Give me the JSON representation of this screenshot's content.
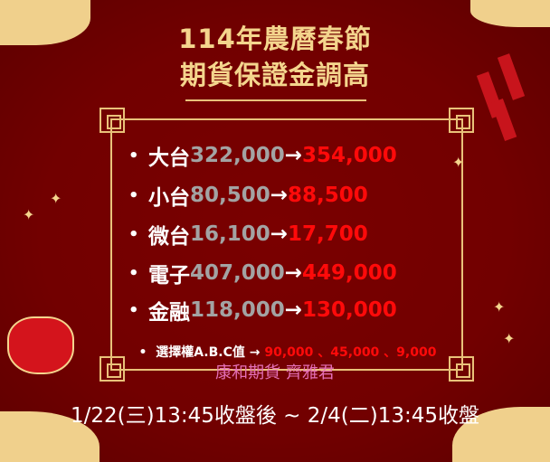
{
  "title_line1": "114年農曆春節",
  "title_line2": "期貨保證金調高",
  "items": [
    {
      "name": "大台",
      "old": "322,000",
      "arrow": "→",
      "new": "354,000"
    },
    {
      "name": "小台",
      "old": "80,500",
      "arrow": "→",
      "new": "88,500"
    },
    {
      "name": "微台",
      "old": "16,100",
      "arrow": "→",
      "new": "17,700"
    },
    {
      "name": "電子",
      "old": "407,000",
      "arrow": "→",
      "new": "449,000"
    },
    {
      "name": "金融",
      "old": "118,000",
      "arrow": "→",
      "new": "130,000"
    }
  ],
  "options": {
    "name": "選擇權A.B.C值",
    "arrow": "→",
    "values": "90,000 、45,000 、9,000"
  },
  "signature": "康和期貨 齊雅君",
  "period": "1/22(三)13:45收盤後 ~ 2/4(二)13:45收盤",
  "colors": {
    "background": "#7a0000",
    "gold": "#f4d58d",
    "old_value": "#a3a3a3",
    "new_value": "#ff0a0a",
    "signature": "#e470b8"
  }
}
